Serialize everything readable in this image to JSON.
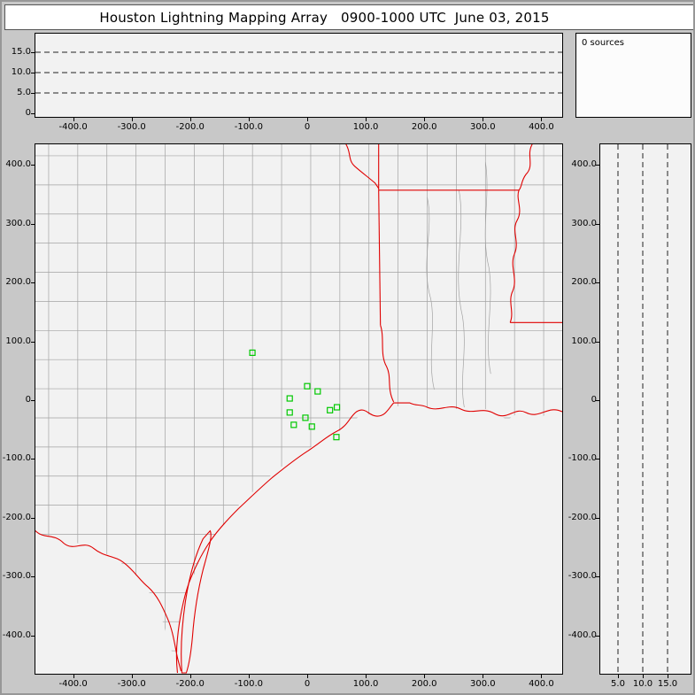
{
  "title": "Houston Lightning Mapping Array   0900-1000 UTC  June 03, 2015",
  "status": {
    "sources_label": "0 sources",
    "source_count": 0
  },
  "colors": {
    "background": "#c8c8c8",
    "panel_background": "#f2f2f2",
    "state_border": "#e00000",
    "county_border": "#a3a3a3",
    "station_marker": "#00c800",
    "reference_line": "#222222"
  },
  "chart_data": [
    {
      "id": "altitude_vs_eastwest",
      "type": "scatter",
      "description": "Altitude (km) vs east-west distance (km); no lightning sources plotted",
      "xlim": [
        -465,
        440
      ],
      "ylim": [
        0,
        20
      ],
      "x_ticks": [
        {
          "v": -400,
          "label": "-400.0"
        },
        {
          "v": -300,
          "label": "-300.0"
        },
        {
          "v": -200,
          "label": "-200.0"
        },
        {
          "v": -100,
          "label": "-100.0"
        },
        {
          "v": 0,
          "label": "0"
        },
        {
          "v": 100,
          "label": "100.0"
        },
        {
          "v": 200,
          "label": "200.0"
        },
        {
          "v": 300,
          "label": "300.0"
        },
        {
          "v": 400,
          "label": "400.0"
        }
      ],
      "y_ticks": [
        {
          "v": 15,
          "label": "15.0"
        },
        {
          "v": 10,
          "label": "10.0"
        },
        {
          "v": 5,
          "label": "5.0"
        },
        {
          "v": 0,
          "label": "0"
        }
      ],
      "reference_lines_alt_km": [
        5,
        10,
        15
      ],
      "reference_line_style": "dashed",
      "points": [],
      "source_count": 0
    },
    {
      "id": "source_counter",
      "type": "text",
      "label": "0 sources",
      "value": 0
    },
    {
      "id": "plan_view",
      "type": "scatter",
      "description": "Plan-view map with county borders (gray), state borders and coastline (red), LMA station markers (green squares); no lightning sources plotted",
      "xlim": [
        -465,
        440
      ],
      "ylim": [
        -467,
        437
      ],
      "x_ticks": [
        {
          "v": -400,
          "label": "-400.0"
        },
        {
          "v": -300,
          "label": "-300.0"
        },
        {
          "v": -200,
          "label": "-200.0"
        },
        {
          "v": -100,
          "label": "-100.0"
        },
        {
          "v": 0,
          "label": "0"
        },
        {
          "v": 100,
          "label": "100.0"
        },
        {
          "v": 200,
          "label": "200.0"
        },
        {
          "v": 300,
          "label": "300.0"
        },
        {
          "v": 400,
          "label": "400.0"
        }
      ],
      "y_ticks": [
        {
          "v": 400,
          "label": "400.0"
        },
        {
          "v": 300,
          "label": "300.0"
        },
        {
          "v": 200,
          "label": "200.0"
        },
        {
          "v": 100,
          "label": "100.0"
        },
        {
          "v": 0,
          "label": "0"
        },
        {
          "v": -100,
          "label": "-100.0"
        },
        {
          "v": -200,
          "label": "-200.0"
        },
        {
          "v": -300,
          "label": "-300.0"
        },
        {
          "v": -400,
          "label": "-400.0"
        }
      ],
      "stations_km": [
        {
          "x": -94,
          "y": 81
        },
        {
          "x": 0,
          "y": 24
        },
        {
          "x": 18,
          "y": 15
        },
        {
          "x": -30,
          "y": 3
        },
        {
          "x": -30,
          "y": -21
        },
        {
          "x": -3,
          "y": -30
        },
        {
          "x": -23,
          "y": -42
        },
        {
          "x": 39,
          "y": -17
        },
        {
          "x": 51,
          "y": -12
        },
        {
          "x": 8,
          "y": -45
        },
        {
          "x": 50,
          "y": -63
        }
      ],
      "points": [],
      "source_count": 0
    },
    {
      "id": "altitude_vs_northsouth",
      "type": "scatter",
      "description": "North-south distance (km) vs altitude (km); no lightning sources plotted",
      "xlim": [
        0,
        20
      ],
      "ylim": [
        -467,
        437
      ],
      "x_ticks": [
        {
          "v": 5,
          "label": "5.0"
        },
        {
          "v": 10,
          "label": "10.0"
        },
        {
          "v": 15,
          "label": "15.0"
        }
      ],
      "y_ticks": [
        {
          "v": 400,
          "label": "400.0"
        },
        {
          "v": 300,
          "label": "300.0"
        },
        {
          "v": 200,
          "label": "200.0"
        },
        {
          "v": 100,
          "label": "100.0"
        },
        {
          "v": 0,
          "label": "0"
        },
        {
          "v": -100,
          "label": "-100.0"
        },
        {
          "v": -200,
          "label": "-200.0"
        },
        {
          "v": -300,
          "label": "-300.0"
        },
        {
          "v": -400,
          "label": "-400.0"
        }
      ],
      "reference_lines_alt_km": [
        5,
        10,
        15
      ],
      "reference_line_style": "dashed",
      "points": [],
      "source_count": 0
    }
  ]
}
